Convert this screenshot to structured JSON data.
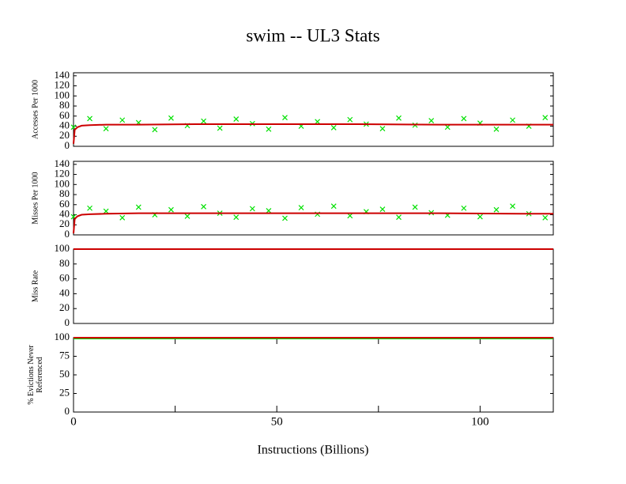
{
  "chart_data": [
    {
      "type": "line",
      "title": "swim -- UL3  Stats",
      "ylabel": [
        "Accesses Per 1000"
      ],
      "xlim": [
        0,
        118
      ],
      "ylim": [
        0,
        146
      ],
      "yticks": [
        0,
        20,
        40,
        60,
        80,
        100,
        120,
        140
      ],
      "series": [
        {
          "type": "scatter",
          "color": "#00e000",
          "x": [
            0,
            4,
            8,
            12,
            16,
            20,
            24,
            28,
            32,
            36,
            40,
            44,
            48,
            52,
            56,
            60,
            64,
            68,
            72,
            76,
            80,
            84,
            88,
            92,
            96,
            100,
            104,
            108,
            112,
            116
          ],
          "values": [
            38,
            55,
            35,
            52,
            47,
            33,
            56,
            41,
            50,
            36,
            54,
            45,
            34,
            57,
            40,
            49,
            37,
            53,
            44,
            35,
            56,
            42,
            51,
            38,
            55,
            46,
            34,
            52,
            40,
            57
          ]
        },
        {
          "type": "line",
          "color": "#cc0000",
          "x": [
            0,
            0.3,
            1,
            2,
            4,
            8,
            16,
            30,
            50,
            70,
            90,
            110,
            118
          ],
          "values": [
            5,
            33,
            38,
            41,
            42,
            43,
            43,
            44,
            44,
            44,
            43,
            43,
            43
          ]
        }
      ]
    },
    {
      "type": "line",
      "ylabel": [
        "Misses Per 1000"
      ],
      "xlim": [
        0,
        118
      ],
      "ylim": [
        0,
        146
      ],
      "yticks": [
        0,
        20,
        40,
        60,
        80,
        100,
        120,
        140
      ],
      "series": [
        {
          "type": "scatter",
          "color": "#00e000",
          "x": [
            0,
            4,
            8,
            12,
            16,
            20,
            24,
            28,
            32,
            36,
            40,
            44,
            48,
            52,
            56,
            60,
            64,
            68,
            72,
            76,
            80,
            84,
            88,
            92,
            96,
            100,
            104,
            108,
            112,
            116
          ],
          "values": [
            36,
            53,
            47,
            34,
            55,
            40,
            50,
            37,
            56,
            43,
            35,
            52,
            48,
            33,
            54,
            41,
            57,
            38,
            46,
            51,
            35,
            55,
            44,
            39,
            53,
            36,
            50,
            57,
            42,
            34
          ]
        },
        {
          "type": "line",
          "color": "#cc0000",
          "x": [
            0,
            0.3,
            1,
            2,
            4,
            8,
            16,
            30,
            50,
            70,
            90,
            110,
            118
          ],
          "values": [
            3,
            32,
            37,
            40,
            41,
            42,
            43,
            43,
            43,
            43,
            43,
            42,
            42
          ]
        }
      ]
    },
    {
      "type": "line",
      "ylabel": [
        "Miss Rate"
      ],
      "xlim": [
        0,
        118
      ],
      "ylim": [
        0,
        100
      ],
      "yticks": [
        0,
        20,
        40,
        60,
        80,
        100
      ],
      "series": [
        {
          "type": "line",
          "color": "#cc0000",
          "x": [
            0,
            118
          ],
          "values": [
            100,
            100
          ]
        }
      ]
    },
    {
      "type": "line",
      "ylabel": [
        "% Evictions Never",
        "Referenced"
      ],
      "xlabel": "Instructions (Billions)",
      "xlim": [
        0,
        118
      ],
      "ylim": [
        0,
        100
      ],
      "yticks": [
        0,
        25,
        50,
        75,
        100
      ],
      "xticks": [
        0,
        50,
        100
      ],
      "xminor_ticks": [
        25,
        75
      ],
      "series": [
        {
          "type": "line",
          "color": "#00e000",
          "x": [
            0,
            118
          ],
          "values": [
            99,
            99
          ]
        },
        {
          "type": "line",
          "color": "#cc0000",
          "x": [
            0,
            118
          ],
          "values": [
            100,
            100
          ]
        }
      ]
    }
  ]
}
